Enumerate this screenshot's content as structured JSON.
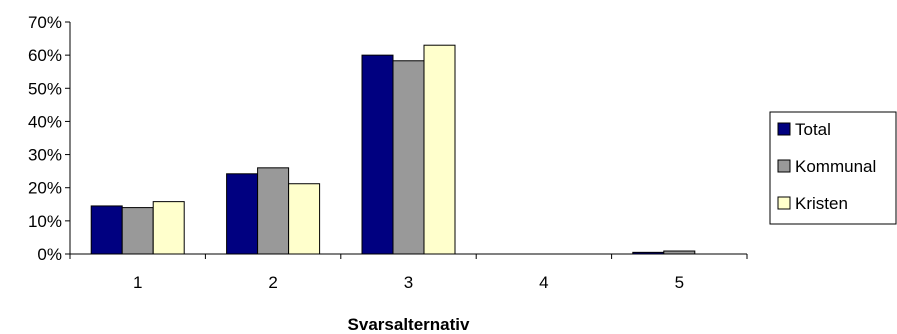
{
  "chart_data": {
    "type": "bar",
    "categories": [
      "1",
      "2",
      "3",
      "4",
      "5"
    ],
    "series": [
      {
        "name": "Total",
        "values": [
          14.5,
          24.2,
          60.0,
          0,
          0.5
        ],
        "color": "#000080"
      },
      {
        "name": "Kommunal",
        "values": [
          14.0,
          26.0,
          58.3,
          0,
          0.9
        ],
        "color": "#999999"
      },
      {
        "name": "Kristen",
        "values": [
          15.8,
          21.2,
          63.0,
          0,
          0
        ],
        "color": "#FFFFCC"
      }
    ],
    "title": "",
    "xlabel": "Svarsalternativ",
    "ylabel": "",
    "ylim": [
      0,
      70
    ],
    "yticks": [
      "0%",
      "10%",
      "20%",
      "30%",
      "40%",
      "50%",
      "60%",
      "70%"
    ],
    "grid": false,
    "legend_position": "right"
  }
}
